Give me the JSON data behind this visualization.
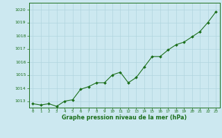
{
  "x": [
    0,
    1,
    2,
    3,
    4,
    5,
    6,
    7,
    8,
    9,
    10,
    11,
    12,
    13,
    14,
    15,
    16,
    17,
    18,
    19,
    20,
    21,
    22,
    23
  ],
  "y": [
    1012.8,
    1012.7,
    1012.8,
    1012.6,
    1013.0,
    1013.1,
    1013.9,
    1014.1,
    1014.4,
    1014.4,
    1015.0,
    1015.2,
    1014.4,
    1014.8,
    1015.6,
    1016.4,
    1016.4,
    1016.9,
    1017.3,
    1017.5,
    1017.9,
    1018.3,
    1019.0,
    1019.8
  ],
  "line_color": "#1a6e1a",
  "marker_color": "#1a6e1a",
  "bg_color": "#cce8f0",
  "grid_color": "#b0d4de",
  "border_color": "#1a6e1a",
  "xlabel": "Graphe pression niveau de la mer (hPa)",
  "xlabel_color": "#1a6e1a",
  "tick_color": "#1a6e1a",
  "ylim": [
    1012.5,
    1020.5
  ],
  "yticks": [
    1013,
    1014,
    1015,
    1016,
    1017,
    1018,
    1019,
    1020
  ],
  "xticks": [
    0,
    1,
    2,
    3,
    4,
    5,
    6,
    7,
    8,
    9,
    10,
    11,
    12,
    13,
    14,
    15,
    16,
    17,
    18,
    19,
    20,
    21,
    22,
    23
  ],
  "figsize": [
    3.2,
    2.0
  ],
  "dpi": 100
}
